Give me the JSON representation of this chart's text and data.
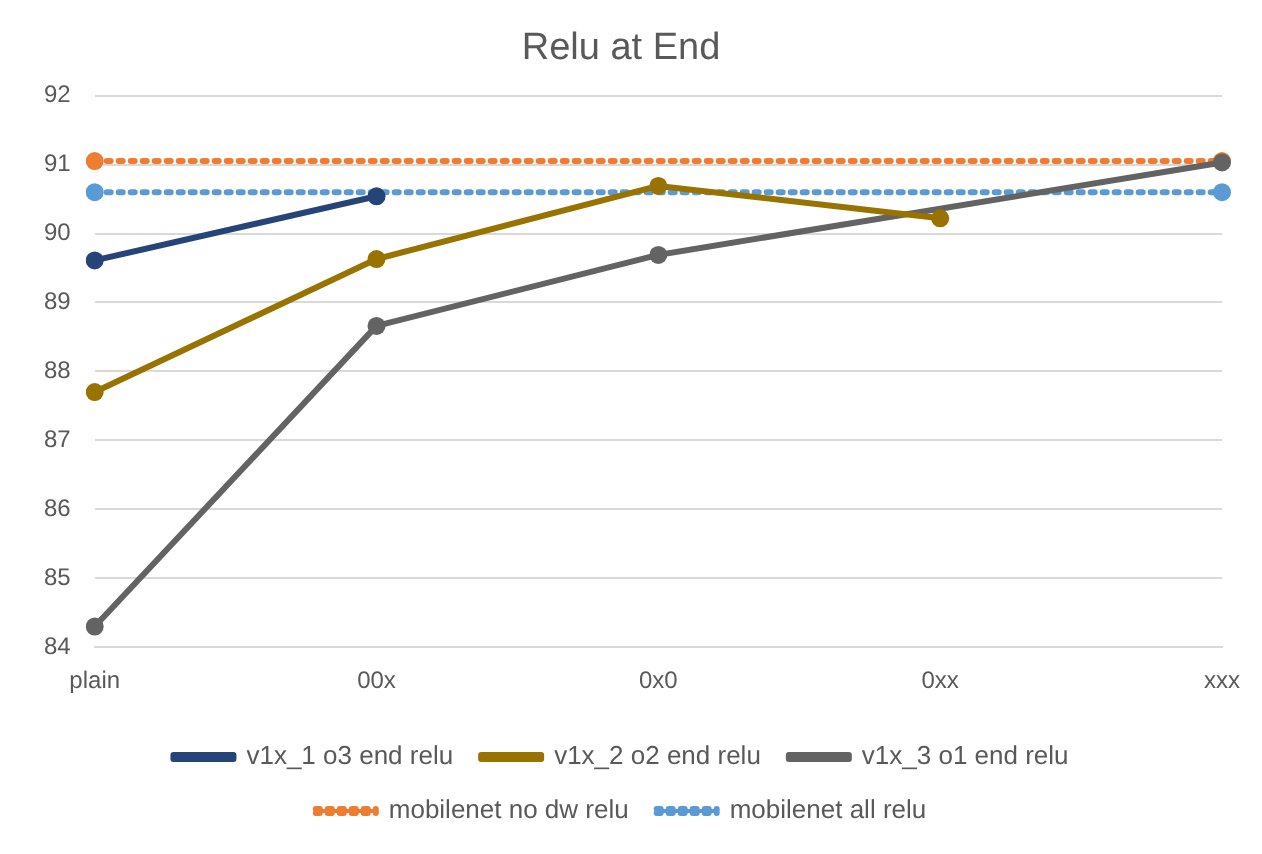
{
  "chart_data": {
    "type": "line",
    "title": "Relu at End",
    "categories": [
      "plain",
      "00x",
      "0x0",
      "0xx",
      "xxx"
    ],
    "ylim": [
      84,
      92
    ],
    "yticks": [
      84,
      85,
      86,
      87,
      88,
      89,
      90,
      91,
      92
    ],
    "grid": "y",
    "legend": "bottom",
    "marker": "circle",
    "series": [
      {
        "name": "mobilenet all relu",
        "color": "#5b9bd5",
        "line_style": "dotted",
        "values": [
          90.6,
          null,
          null,
          null,
          90.6
        ]
      },
      {
        "name": "mobilenet no dw relu",
        "color": "#ed7d31",
        "line_style": "dotted",
        "values": [
          91.05,
          null,
          null,
          null,
          91.05
        ]
      },
      {
        "name": "v1x_3 o1 end relu",
        "color": "#636363",
        "line_style": "solid",
        "values": [
          84.3,
          88.66,
          89.69,
          null,
          91.03
        ]
      },
      {
        "name": "v1x_2 o2 end relu",
        "color": "#997300",
        "line_style": "solid",
        "values": [
          87.7,
          89.63,
          90.69,
          90.22,
          null
        ]
      },
      {
        "name": "v1x_1 o3 end relu",
        "color": "#264478",
        "line_style": "solid",
        "values": [
          89.61,
          90.54,
          null,
          null,
          null
        ]
      }
    ]
  }
}
